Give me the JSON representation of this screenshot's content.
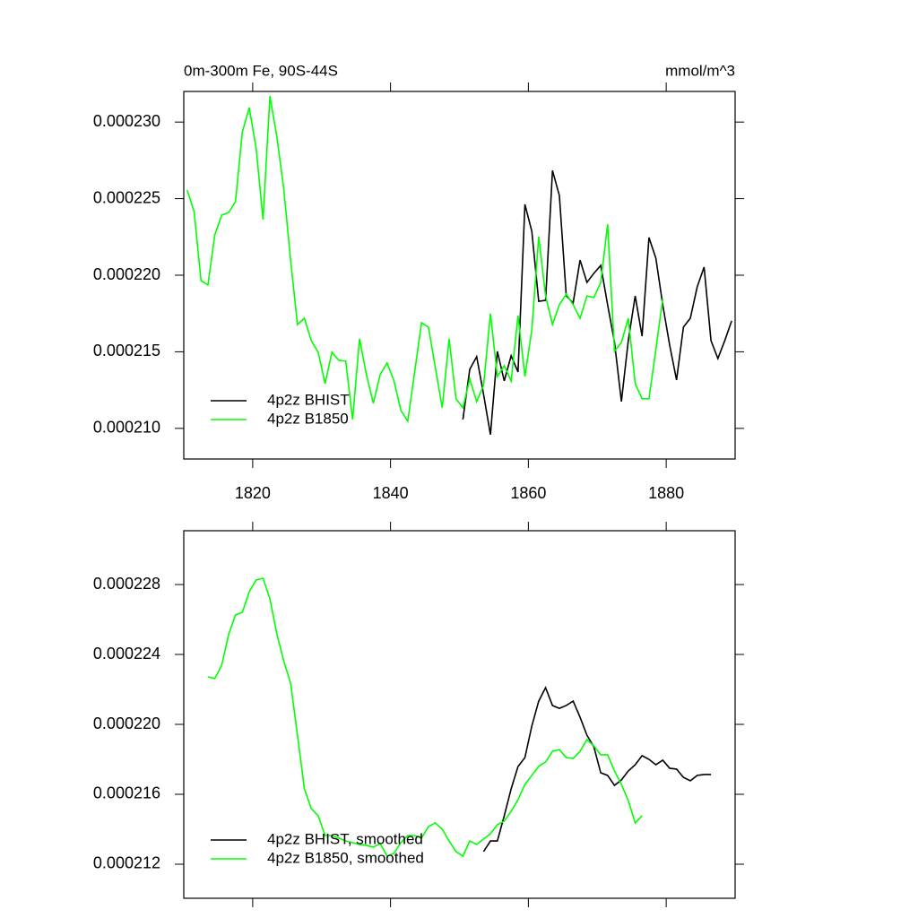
{
  "chart_data": [
    {
      "type": "line",
      "title": "0m-300m Fe, 90S-44S",
      "y_units": "mmol/m^3",
      "xlim": [
        1810,
        1890
      ],
      "xticks": [
        1820,
        1840,
        1860,
        1880
      ],
      "xticklabels": true,
      "ylim": [
        0.000208,
        0.000232
      ],
      "yticks": [
        {
          "value": 0.00021,
          "label": "0.000210"
        },
        {
          "value": 0.000215,
          "label": "0.000215"
        },
        {
          "value": 0.00022,
          "label": "0.000220"
        },
        {
          "value": 0.000225,
          "label": "0.000225"
        },
        {
          "value": 0.00023,
          "label": "0.000230"
        }
      ],
      "legend": "lower left",
      "series": [
        {
          "name": "4p2z BHIST",
          "color": "#000000",
          "x": [
            1850.5,
            1851.5,
            1852.5,
            1853.5,
            1854.5,
            1855.5,
            1856.5,
            1857.5,
            1858.5,
            1859.5,
            1860.5,
            1861.5,
            1862.5,
            1863.5,
            1864.5,
            1865.5,
            1866.5,
            1867.5,
            1868.5,
            1869.5,
            1870.5,
            1871.5,
            1872.5,
            1873.5,
            1874.5,
            1875.5,
            1876.5,
            1877.5,
            1878.5,
            1879.5,
            1880.5,
            1881.5,
            1882.5,
            1883.5,
            1884.5,
            1885.5,
            1886.5,
            1887.5,
            1888.5,
            1889.5
          ],
          "values": [
            0.00021058,
            0.00021386,
            0.00021468,
            0.00021222,
            0.00020959,
            0.00021503,
            0.0002131,
            0.00021474,
            0.00021368,
            0.00022462,
            0.00022287,
            0.0002183,
            0.00021836,
            0.00022684,
            0.0002252,
            0.00021865,
            0.00021819,
            0.00022099,
            0.00021953,
            0.00022012,
            0.00022064,
            0.00021807,
            0.00021561,
            0.00021175,
            0.00021573,
            0.00021865,
            0.00021602,
            0.00022246,
            0.00022111,
            0.00021807,
            0.00021544,
            0.00021316,
            0.00021661,
            0.00021719,
            0.00021924,
            0.00022053,
            0.00021573,
            0.00021456,
            0.00021573,
            0.00021702
          ]
        },
        {
          "name": "4p2z B1850",
          "color": "#00ff00",
          "x": [
            1810.5,
            1811.5,
            1812.5,
            1813.5,
            1814.5,
            1815.5,
            1816.5,
            1817.5,
            1818.5,
            1819.5,
            1820.5,
            1821.5,
            1822.5,
            1823.5,
            1824.5,
            1825.5,
            1826.5,
            1827.5,
            1828.5,
            1829.5,
            1830.5,
            1831.5,
            1832.5,
            1833.5,
            1834.5,
            1835.5,
            1836.5,
            1837.5,
            1838.5,
            1839.5,
            1840.5,
            1841.5,
            1842.5,
            1843.5,
            1844.5,
            1845.5,
            1846.5,
            1847.5,
            1848.5,
            1849.5,
            1850.5,
            1851.5,
            1852.5,
            1853.5,
            1854.5,
            1855.5,
            1856.5,
            1857.5,
            1858.5,
            1859.5,
            1860.5,
            1861.5,
            1862.5,
            1863.5,
            1864.5,
            1865.5,
            1866.5,
            1867.5,
            1868.5,
            1869.5,
            1870.5,
            1871.5,
            1872.5,
            1873.5,
            1874.5,
            1875.5,
            1876.5,
            1877.5,
            1878.5,
            1879.5
          ],
          "values": [
            0.00022556,
            0.00022415,
            0.00021965,
            0.00021936,
            0.00022263,
            0.00022392,
            0.00022409,
            0.0002248,
            0.00022936,
            0.00023094,
            0.0002283,
            0.00022363,
            0.0002317,
            0.00022906,
            0.00022567,
            0.00022099,
            0.00021678,
            0.00021719,
            0.00021573,
            0.00021497,
            0.00021292,
            0.00021497,
            0.00021444,
            0.00021439,
            0.00021058,
            0.00021585,
            0.00021351,
            0.00021164,
            0.00021351,
            0.00021427,
            0.0002131,
            0.00021117,
            0.00021047,
            0.00021368,
            0.0002169,
            0.00021661,
            0.00021398,
            0.00021135,
            0.00021585,
            0.00021193,
            0.00021135,
            0.00021322,
            0.00021175,
            0.00021281,
            0.00021749,
            0.00021339,
            0.00021409,
            0.0002131,
            0.00021737,
            0.00021339,
            0.00021643,
            0.00022251,
            0.00021865,
            0.00021678,
            0.00021807,
            0.00021877,
            0.00021807,
            0.00021719,
            0.00021865,
            0.00021854,
            0.00021953,
            0.00022333,
            0.00021503,
            0.00021561,
            0.00021719,
            0.00021292,
            0.00021193,
            0.00021193,
            0.00021515,
            0.00021848
          ]
        }
      ]
    },
    {
      "type": "line",
      "xlim": [
        1810,
        1890
      ],
      "xticks": [
        1820,
        1840,
        1860,
        1880
      ],
      "xticklabels": false,
      "ylim": [
        0.00021005,
        0.00023108
      ],
      "yticks": [
        {
          "value": 0.000212,
          "label": "0.000212"
        },
        {
          "value": 0.000216,
          "label": "0.000216"
        },
        {
          "value": 0.00022,
          "label": "0.000220"
        },
        {
          "value": 0.000224,
          "label": "0.000224"
        },
        {
          "value": 0.000228,
          "label": "0.000228"
        }
      ],
      "legend": "lower left",
      "series": [
        {
          "name": "4p2z BHIST, smoothed",
          "color": "#000000",
          "x": [
            1853.5,
            1854.5,
            1855.5,
            1856.5,
            1857.5,
            1858.5,
            1859.5,
            1860.5,
            1861.5,
            1862.5,
            1863.5,
            1864.5,
            1865.5,
            1866.5,
            1867.5,
            1868.5,
            1869.5,
            1870.5,
            1871.5,
            1872.5,
            1873.5,
            1874.5,
            1875.5,
            1876.5,
            1877.5,
            1878.5,
            1879.5,
            1880.5,
            1881.5,
            1882.5,
            1883.5,
            1884.5,
            1885.5,
            1886.5
          ],
          "values": [
            0.00021272,
            0.00021333,
            0.00021333,
            0.00021477,
            0.00021631,
            0.00021759,
            0.0002181,
            0.0002199,
            0.00022133,
            0.0002221,
            0.00022108,
            0.00022092,
            0.00022108,
            0.00022133,
            0.00022041,
            0.00021938,
            0.00021872,
            0.00021723,
            0.00021708,
            0.00021651,
            0.00021682,
            0.00021733,
            0.00021769,
            0.00021821,
            0.000218,
            0.00021769,
            0.00021795,
            0.00021749,
            0.00021744,
            0.00021697,
            0.00021677,
            0.00021708,
            0.00021713,
            0.00021713
          ]
        },
        {
          "name": "4p2z B1850, smoothed",
          "color": "#00ff00",
          "x": [
            1813.5,
            1814.5,
            1815.5,
            1816.5,
            1817.5,
            1818.5,
            1819.5,
            1820.5,
            1821.5,
            1822.5,
            1823.5,
            1824.5,
            1825.5,
            1826.5,
            1827.5,
            1828.5,
            1829.5,
            1830.5,
            1831.5,
            1832.5,
            1833.5,
            1834.5,
            1835.5,
            1836.5,
            1837.5,
            1838.5,
            1839.5,
            1840.5,
            1841.5,
            1842.5,
            1843.5,
            1844.5,
            1845.5,
            1846.5,
            1847.5,
            1848.5,
            1849.5,
            1850.5,
            1851.5,
            1852.5,
            1853.5,
            1854.5,
            1855.5,
            1856.5,
            1857.5,
            1858.5,
            1859.5,
            1860.5,
            1861.5,
            1862.5,
            1863.5,
            1864.5,
            1865.5,
            1866.5,
            1867.5,
            1868.5,
            1869.5,
            1870.5,
            1871.5,
            1872.5,
            1873.5,
            1874.5,
            1875.5,
            1876.5
          ],
          "values": [
            0.00022272,
            0.00022262,
            0.00022338,
            0.00022513,
            0.00022626,
            0.00022641,
            0.00022759,
            0.00022826,
            0.00022836,
            0.00022718,
            0.00022518,
            0.00022364,
            0.00022236,
            0.00021938,
            0.00021631,
            0.00021518,
            0.00021477,
            0.00021364,
            0.00021364,
            0.00021349,
            0.00021333,
            0.00021323,
            0.00021313,
            0.00021308,
            0.00021297,
            0.00021318,
            0.00021246,
            0.00021262,
            0.00021323,
            0.00021364,
            0.00021364,
            0.00021349,
            0.00021415,
            0.00021436,
            0.000214,
            0.00021333,
            0.00021272,
            0.00021246,
            0.00021333,
            0.00021313,
            0.00021344,
            0.00021374,
            0.00021426,
            0.00021446,
            0.00021503,
            0.00021569,
            0.00021656,
            0.00021708,
            0.00021759,
            0.00021785,
            0.00021846,
            0.00021856,
            0.0002181,
            0.00021805,
            0.00021846,
            0.00021913,
            0.00021877,
            0.00021826,
            0.00021826,
            0.00021733,
            0.00021656,
            0.00021564,
            0.00021436,
            0.00021477
          ]
        }
      ]
    }
  ]
}
